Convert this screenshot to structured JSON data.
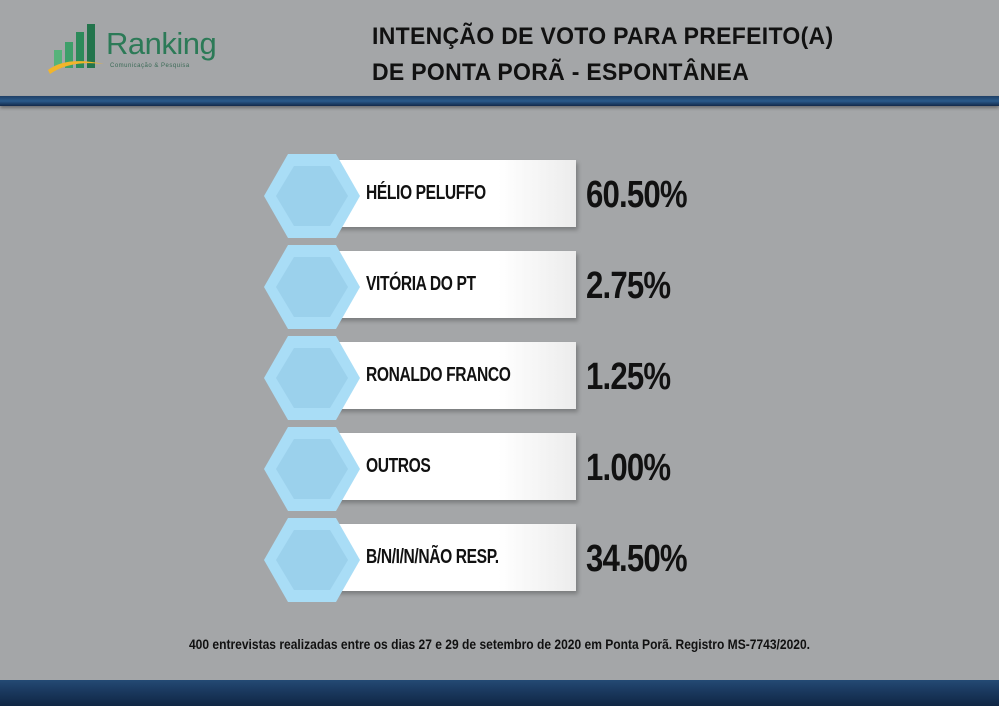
{
  "brand": {
    "name": "Ranking",
    "tagline": "Comunicação & Pesquisa"
  },
  "title": {
    "line1": "INTENÇÃO DE VOTO PARA PREFEITO(A)",
    "line2": "DE PONTA PORÃ - ESPONTÂNEA"
  },
  "colors": {
    "hex_fill": "#a9ddf6",
    "hex_shadow": "#8fc6e3",
    "band": "#1f3f66",
    "brand_green": "#2c7a57"
  },
  "chart_data": {
    "type": "bar",
    "title": "INTENÇÃO DE VOTO PARA PREFEITO(A) DE PONTA PORÃ - ESPONTÂNEA",
    "categories": [
      "HÉLIO PELUFFO",
      "VITÓRIA DO PT",
      "RONALDO FRANCO",
      "OUTROS",
      "B/N/I/N/NÃO RESP."
    ],
    "values": [
      60.5,
      2.75,
      1.25,
      1.0,
      34.5
    ],
    "value_labels": [
      "60.50%",
      "2.75%",
      "1.25%",
      "1.00%",
      "34.50%"
    ],
    "unit": "%"
  },
  "footnote": "400 entrevistas realizadas entre os dias 27 e 29 de setembro de 2020 em Ponta Porã. Registro MS-7743/2020."
}
